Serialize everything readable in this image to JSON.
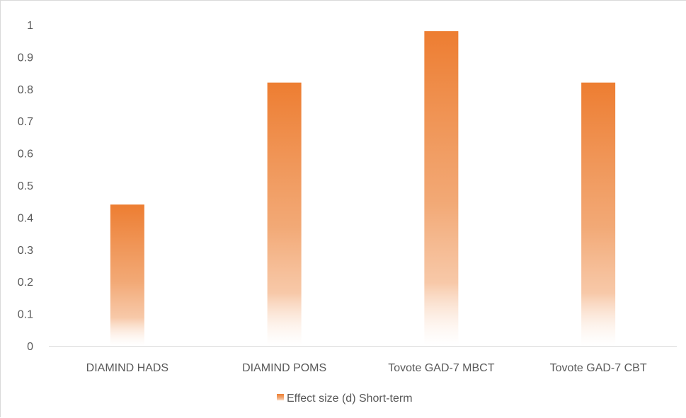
{
  "chart_data": {
    "type": "bar",
    "categories": [
      "DIAMIND HADS",
      "DIAMIND POMS",
      "Tovote GAD-7 MBCT",
      "Tovote GAD-7 CBT"
    ],
    "series": [
      {
        "name": "Effect size (d) Short-term",
        "values": [
          0.44,
          0.82,
          0.98,
          0.82
        ],
        "color": "#ED7D31"
      }
    ],
    "ylim": [
      0,
      1
    ],
    "yticks": [
      "0",
      "0.1",
      "0.2",
      "0.3",
      "0.4",
      "0.5",
      "0.6",
      "0.7",
      "0.8",
      "0.9",
      "1"
    ],
    "grid": false,
    "legend": "bottom",
    "fill": "gradient"
  }
}
